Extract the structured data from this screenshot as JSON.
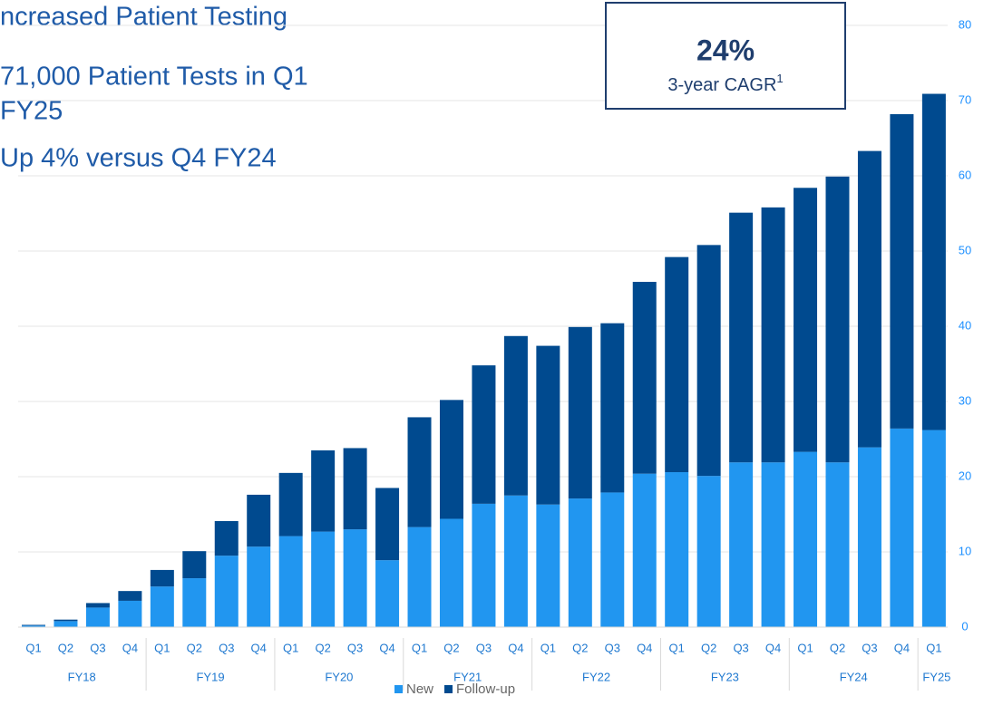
{
  "chart_data": {
    "type": "stacked_bar",
    "headline": [
      "ncreased Patient Testing",
      "71,000 Patient Tests in Q1",
      "FY25",
      "Up 4% versus Q4 FY24"
    ],
    "callout": {
      "value_text": "24%",
      "label": "3-year CAGR",
      "footnote": "1"
    },
    "category_groups": [
      {
        "label": "FY18",
        "categories": [
          "Q1",
          "Q2",
          "Q3",
          "Q4"
        ]
      },
      {
        "label": "FY19",
        "categories": [
          "Q1",
          "Q2",
          "Q3",
          "Q4"
        ]
      },
      {
        "label": "FY20",
        "categories": [
          "Q1",
          "Q2",
          "Q3",
          "Q4"
        ]
      },
      {
        "label": "FY21",
        "categories": [
          "Q1",
          "Q2",
          "Q3",
          "Q4"
        ]
      },
      {
        "label": "FY22",
        "categories": [
          "Q1",
          "Q2",
          "Q3",
          "Q4"
        ]
      },
      {
        "label": "FY23",
        "categories": [
          "Q1",
          "Q2",
          "Q3",
          "Q4"
        ]
      },
      {
        "label": "FY24",
        "categories": [
          "Q1",
          "Q2",
          "Q3",
          "Q4"
        ]
      },
      {
        "label": "FY25",
        "categories": [
          "Q1"
        ]
      }
    ],
    "series": [
      {
        "name": "New",
        "color": "#2196f0",
        "values": [
          0.2,
          0.8,
          2.6,
          3.5,
          5.4,
          6.5,
          9.5,
          10.7,
          12.1,
          12.7,
          13.0,
          8.9,
          13.3,
          14.4,
          16.4,
          17.5,
          16.3,
          17.1,
          17.9,
          20.4,
          20.6,
          20.1,
          21.9,
          21.9,
          23.3,
          21.9,
          23.9,
          26.4,
          26.2
        ]
      },
      {
        "name": "Follow-up",
        "color": "#004a8f",
        "values": [
          0.1,
          0.2,
          0.6,
          1.3,
          2.2,
          3.6,
          4.6,
          6.9,
          8.4,
          10.8,
          10.8,
          9.6,
          14.6,
          15.8,
          18.4,
          21.2,
          21.1,
          22.8,
          22.5,
          25.5,
          28.6,
          30.7,
          33.2,
          33.9,
          35.1,
          38.0,
          39.4,
          41.8,
          44.7
        ]
      }
    ],
    "ylim": [
      0,
      80
    ],
    "yticks": [
      0,
      10,
      20,
      30,
      40,
      50,
      60,
      70,
      80
    ],
    "grid": true,
    "legend": "bottom"
  }
}
